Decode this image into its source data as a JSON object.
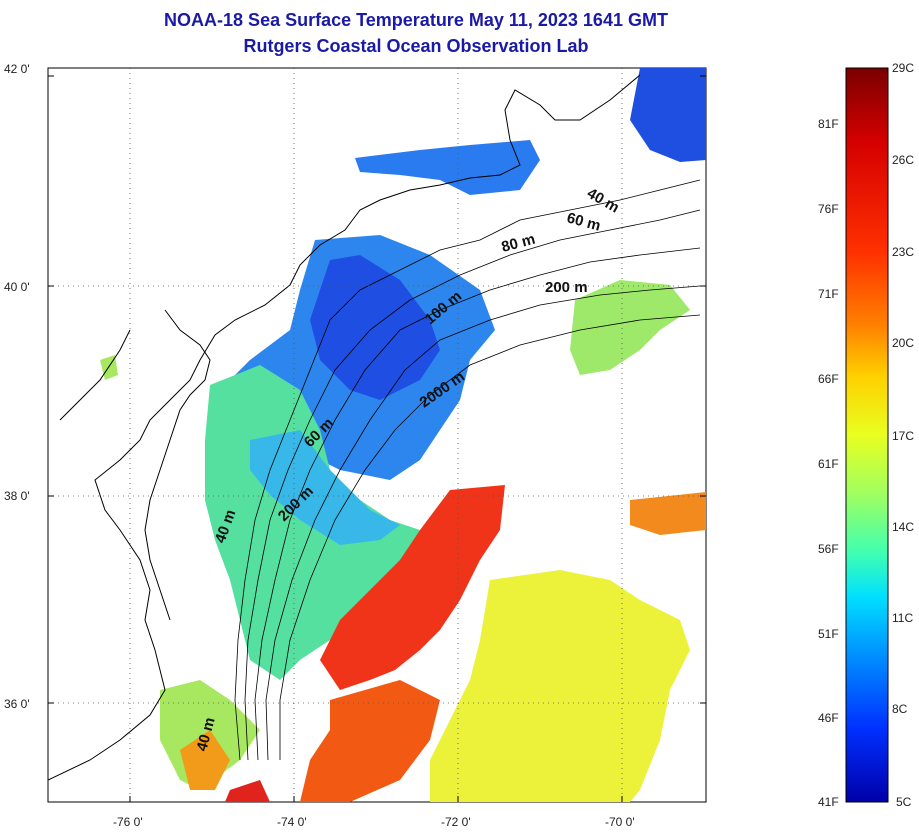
{
  "title": {
    "line1": "NOAA-18 Sea Surface Temperature May 11, 2023 1641 GMT",
    "line2": "Rutgers Coastal Ocean Observation Lab"
  },
  "axes": {
    "lat_ticks": [
      "42 0'",
      "40 0'",
      "38 0'",
      "36 0'"
    ],
    "lon_ticks": [
      "-76 0'",
      "-74 0'",
      "-72 0'",
      "-70 0'"
    ]
  },
  "contours": [
    "40 m",
    "60 m",
    "80 m",
    "200 m",
    "100 m",
    "2000 m",
    "60 m",
    "200 m",
    "40 m",
    "40 m"
  ],
  "colorbar": {
    "fahrenheit": [
      "81F",
      "76F",
      "71F",
      "66F",
      "61F",
      "56F",
      "51F",
      "46F",
      "41F"
    ],
    "celsius": [
      "29C",
      "26C",
      "23C",
      "20C",
      "17C",
      "14C",
      "11C",
      "8C",
      "5C"
    ],
    "colors": [
      "#7a0000",
      "#d40000",
      "#ff3000",
      "#ff8000",
      "#ffd000",
      "#e8ff20",
      "#a0ff60",
      "#40ffb0",
      "#00e0ff",
      "#0090ff",
      "#0030ff",
      "#0000a8"
    ]
  }
}
